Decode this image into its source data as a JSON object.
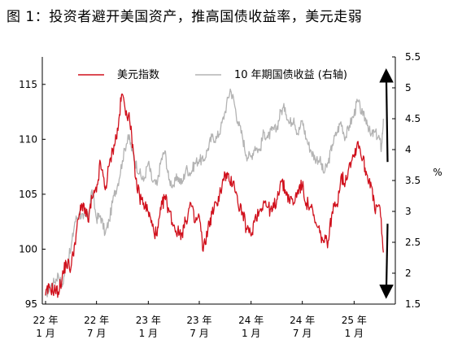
{
  "chart_data": {
    "type": "line",
    "title": "图 1：投资者避开美国资产，推高国债收益率，美元走弱",
    "x": [
      "22 年\n1 月",
      "22 年\n7 月",
      "23 年\n1 月",
      "23 年\n7 月",
      "24 年\n1 月",
      "24 年\n7 月",
      "25 年\n1 月"
    ],
    "x_tick_labels": [
      {
        "year": "22 年",
        "month": "1 月"
      },
      {
        "year": "22 年",
        "month": "7 月"
      },
      {
        "year": "23 年",
        "month": "1 月"
      },
      {
        "year": "23 年",
        "month": "7 月"
      },
      {
        "year": "24 年",
        "month": "1 月"
      },
      {
        "year": "24 年",
        "month": "7 月"
      },
      {
        "year": "25 年",
        "month": "1 月"
      }
    ],
    "y_left": {
      "ticks": [
        95,
        100,
        105,
        110,
        115
      ],
      "range": [
        95,
        117.5
      ]
    },
    "y_right": {
      "ticks": [
        "1.5",
        "2",
        "2.5",
        "3",
        "3.5",
        "4",
        "4.5",
        "5",
        "5.5"
      ],
      "range": [
        1.5,
        5.5
      ],
      "unit": "%"
    },
    "legend_position": "top",
    "grid": false,
    "series": [
      {
        "name": "美元指数",
        "axis": "left",
        "color": "#d0101c",
        "points": [
          [
            "2022-01-01",
            95.8
          ],
          [
            "2022-01-15",
            96.5
          ],
          [
            "2022-02-01",
            96.3
          ],
          [
            "2022-02-15",
            96.1
          ],
          [
            "2022-03-01",
            97.4
          ],
          [
            "2022-03-15",
            98.8
          ],
          [
            "2022-04-01",
            98.3
          ],
          [
            "2022-04-15",
            100.6
          ],
          [
            "2022-05-01",
            103.2
          ],
          [
            "2022-05-15",
            104.2
          ],
          [
            "2022-06-01",
            102.5
          ],
          [
            "2022-06-15",
            104.6
          ],
          [
            "2022-07-01",
            105.2
          ],
          [
            "2022-07-15",
            107.9
          ],
          [
            "2022-08-01",
            105.4
          ],
          [
            "2022-08-15",
            107.6
          ],
          [
            "2022-09-01",
            109.5
          ],
          [
            "2022-09-15",
            110.8
          ],
          [
            "2022-09-28",
            114.1
          ],
          [
            "2022-10-15",
            112.6
          ],
          [
            "2022-11-01",
            111.2
          ],
          [
            "2022-11-15",
            106.6
          ],
          [
            "2022-12-01",
            104.8
          ],
          [
            "2022-12-15",
            104.2
          ],
          [
            "2023-01-01",
            103.4
          ],
          [
            "2023-01-15",
            102.1
          ],
          [
            "2023-02-01",
            101.2
          ],
          [
            "2023-02-15",
            103.6
          ],
          [
            "2023-03-01",
            104.8
          ],
          [
            "2023-03-15",
            103.6
          ],
          [
            "2023-04-01",
            102.2
          ],
          [
            "2023-04-15",
            101.5
          ],
          [
            "2023-05-01",
            101.5
          ],
          [
            "2023-05-15",
            102.6
          ],
          [
            "2023-06-01",
            104.2
          ],
          [
            "2023-06-15",
            102.4
          ],
          [
            "2023-07-01",
            103.0
          ],
          [
            "2023-07-15",
            99.8
          ],
          [
            "2023-08-01",
            101.9
          ],
          [
            "2023-08-15",
            103.2
          ],
          [
            "2023-09-01",
            104.2
          ],
          [
            "2023-09-15",
            105.3
          ],
          [
            "2023-10-01",
            106.8
          ],
          [
            "2023-10-15",
            106.2
          ],
          [
            "2023-11-01",
            106.2
          ],
          [
            "2023-11-15",
            104.2
          ],
          [
            "2023-12-01",
            103.4
          ],
          [
            "2023-12-15",
            101.9
          ],
          [
            "2024-01-01",
            101.2
          ],
          [
            "2024-01-15",
            102.9
          ],
          [
            "2024-02-01",
            103.5
          ],
          [
            "2024-02-15",
            104.4
          ],
          [
            "2024-03-01",
            103.8
          ],
          [
            "2024-03-15",
            103.4
          ],
          [
            "2024-04-01",
            104.5
          ],
          [
            "2024-04-15",
            106.2
          ],
          [
            "2024-05-01",
            105.4
          ],
          [
            "2024-05-15",
            104.6
          ],
          [
            "2024-06-01",
            104.2
          ],
          [
            "2024-06-15",
            105.4
          ],
          [
            "2024-07-01",
            105.8
          ],
          [
            "2024-07-15",
            104.2
          ],
          [
            "2024-08-01",
            103.8
          ],
          [
            "2024-08-15",
            102.4
          ],
          [
            "2024-09-01",
            101.5
          ],
          [
            "2024-09-15",
            100.6
          ],
          [
            "2024-10-01",
            100.8
          ],
          [
            "2024-10-15",
            103.4
          ],
          [
            "2024-11-01",
            104.1
          ],
          [
            "2024-11-15",
            106.6
          ],
          [
            "2024-12-01",
            106.1
          ],
          [
            "2024-12-15",
            107.8
          ],
          [
            "2025-01-01",
            108.6
          ],
          [
            "2025-01-15",
            109.8
          ],
          [
            "2025-02-01",
            108.2
          ],
          [
            "2025-02-15",
            106.8
          ],
          [
            "2025-03-01",
            106.1
          ],
          [
            "2025-03-15",
            103.6
          ],
          [
            "2025-04-01",
            104.0
          ],
          [
            "2025-04-15",
            99.7
          ]
        ]
      },
      {
        "name": "10 年期国债收益 (右轴)",
        "axis": "right",
        "color": "#b3b3b3",
        "points": [
          [
            "2022-01-01",
            1.63
          ],
          [
            "2022-01-15",
            1.78
          ],
          [
            "2022-02-01",
            1.85
          ],
          [
            "2022-02-15",
            1.98
          ],
          [
            "2022-03-01",
            1.78
          ],
          [
            "2022-03-15",
            2.14
          ],
          [
            "2022-04-01",
            2.38
          ],
          [
            "2022-04-15",
            2.83
          ],
          [
            "2022-05-01",
            2.98
          ],
          [
            "2022-05-15",
            2.88
          ],
          [
            "2022-06-01",
            2.92
          ],
          [
            "2022-06-15",
            3.35
          ],
          [
            "2022-07-01",
            2.88
          ],
          [
            "2022-07-15",
            2.93
          ],
          [
            "2022-08-01",
            2.64
          ],
          [
            "2022-08-15",
            2.85
          ],
          [
            "2022-09-01",
            3.26
          ],
          [
            "2022-09-15",
            3.45
          ],
          [
            "2022-10-01",
            3.82
          ],
          [
            "2022-10-21",
            4.24
          ],
          [
            "2022-11-01",
            4.05
          ],
          [
            "2022-11-15",
            3.81
          ],
          [
            "2022-12-01",
            3.62
          ],
          [
            "2022-12-15",
            3.49
          ],
          [
            "2023-01-01",
            3.79
          ],
          [
            "2023-01-15",
            3.49
          ],
          [
            "2023-02-01",
            3.42
          ],
          [
            "2023-02-15",
            3.82
          ],
          [
            "2023-03-01",
            3.98
          ],
          [
            "2023-03-15",
            3.51
          ],
          [
            "2023-04-01",
            3.42
          ],
          [
            "2023-04-15",
            3.56
          ],
          [
            "2023-05-01",
            3.45
          ],
          [
            "2023-05-15",
            3.69
          ],
          [
            "2023-06-01",
            3.62
          ],
          [
            "2023-06-15",
            3.78
          ],
          [
            "2023-07-01",
            3.84
          ],
          [
            "2023-07-15",
            3.81
          ],
          [
            "2023-08-01",
            4.02
          ],
          [
            "2023-08-15",
            4.21
          ],
          [
            "2023-09-01",
            4.18
          ],
          [
            "2023-09-15",
            4.34
          ],
          [
            "2023-10-01",
            4.62
          ],
          [
            "2023-10-19",
            4.98
          ],
          [
            "2023-11-01",
            4.79
          ],
          [
            "2023-11-15",
            4.45
          ],
          [
            "2023-12-01",
            4.22
          ],
          [
            "2023-12-15",
            3.91
          ],
          [
            "2024-01-01",
            3.88
          ],
          [
            "2024-01-15",
            4.05
          ],
          [
            "2024-02-01",
            3.98
          ],
          [
            "2024-02-15",
            4.28
          ],
          [
            "2024-03-01",
            4.19
          ],
          [
            "2024-03-15",
            4.31
          ],
          [
            "2024-04-01",
            4.33
          ],
          [
            "2024-04-15",
            4.62
          ],
          [
            "2024-05-01",
            4.68
          ],
          [
            "2024-05-15",
            4.42
          ],
          [
            "2024-06-01",
            4.51
          ],
          [
            "2024-06-15",
            4.25
          ],
          [
            "2024-07-01",
            4.47
          ],
          [
            "2024-07-15",
            4.18
          ],
          [
            "2024-08-01",
            3.98
          ],
          [
            "2024-08-15",
            3.86
          ],
          [
            "2024-09-01",
            3.84
          ],
          [
            "2024-09-15",
            3.62
          ],
          [
            "2024-10-01",
            3.78
          ],
          [
            "2024-10-15",
            4.08
          ],
          [
            "2024-11-01",
            4.28
          ],
          [
            "2024-11-15",
            4.45
          ],
          [
            "2024-12-01",
            4.19
          ],
          [
            "2024-12-15",
            4.39
          ],
          [
            "2025-01-01",
            4.57
          ],
          [
            "2025-01-13",
            4.79
          ],
          [
            "2025-02-01",
            4.55
          ],
          [
            "2025-02-15",
            4.48
          ],
          [
            "2025-03-01",
            4.22
          ],
          [
            "2025-03-15",
            4.28
          ],
          [
            "2025-04-01",
            4.18
          ],
          [
            "2025-04-08",
            4.01
          ],
          [
            "2025-04-15",
            4.5
          ]
        ]
      }
    ],
    "annotations": [
      {
        "type": "arrow",
        "direction": "up",
        "color": "#000000",
        "from": {
          "date": "2025-04-01",
          "axis": "right",
          "value": 3.8
        },
        "to": {
          "date": "2025-05-01",
          "axis": "right",
          "value": 5.2
        }
      },
      {
        "type": "arrow",
        "direction": "down",
        "color": "#000000",
        "from": {
          "date": "2025-04-01",
          "axis": "right",
          "value": 2.8
        },
        "to": {
          "date": "2025-05-01",
          "axis": "right",
          "value": 1.7
        }
      }
    ]
  }
}
